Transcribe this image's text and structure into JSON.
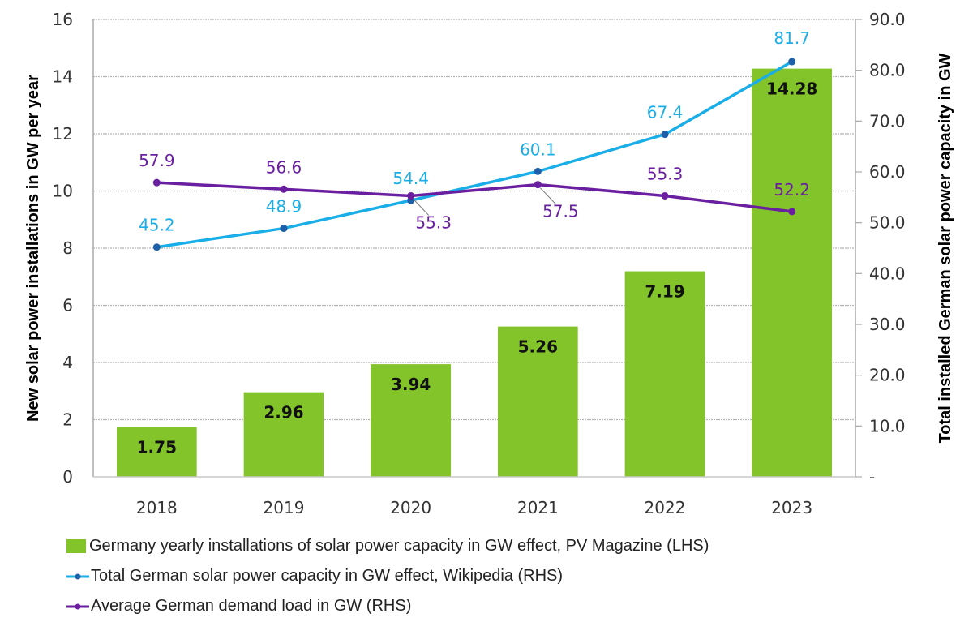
{
  "chart_data": {
    "type": "bar",
    "title": "",
    "categories": [
      "2018",
      "2019",
      "2020",
      "2021",
      "2022",
      "2023"
    ],
    "ylabel": "New solar power installations in GW per year",
    "y2label": "Total installed German solar power capacity in GW",
    "xlabel": "",
    "ylim": [
      0,
      16
    ],
    "y2lim": [
      0,
      90
    ],
    "y_ticks": [
      "0",
      "2",
      "4",
      "6",
      "8",
      "10",
      "12",
      "14",
      "16"
    ],
    "y2_ticks": [
      "-",
      "10.0",
      "20.0",
      "30.0",
      "40.0",
      "50.0",
      "60.0",
      "70.0",
      "80.0",
      "90.0"
    ],
    "grid": true,
    "legend_position": "bottom",
    "series": [
      {
        "name": "Germany yearly installations of solar power capacity in GW effect, PV Magazine (LHS)",
        "type": "bar",
        "axis": "left",
        "color": "#82C42A",
        "values": [
          1.75,
          2.96,
          3.94,
          5.26,
          7.19,
          14.28
        ],
        "labels": [
          "1.75",
          "2.96",
          "3.94",
          "5.26",
          "7.19",
          "14.28"
        ]
      },
      {
        "name": "Total German solar power capacity in GW effect, Wikipedia (RHS)",
        "type": "line",
        "axis": "right",
        "color": "#1AAEE8",
        "marker_color": "#1F5FA8",
        "values": [
          45.2,
          48.9,
          54.4,
          60.1,
          67.4,
          81.7
        ],
        "labels": [
          "45.2",
          "48.9",
          "54.4",
          "60.1",
          "67.4",
          "81.7"
        ]
      },
      {
        "name": "Average German demand load in GW (RHS)",
        "type": "line",
        "axis": "right",
        "color": "#6A1FA0",
        "marker_color": "#6A1FA0",
        "values": [
          57.9,
          56.6,
          55.3,
          57.5,
          55.3,
          52.2
        ],
        "labels": [
          "57.9",
          "56.6",
          "55.3",
          "57.5",
          "55.3",
          "52.2"
        ]
      }
    ]
  }
}
